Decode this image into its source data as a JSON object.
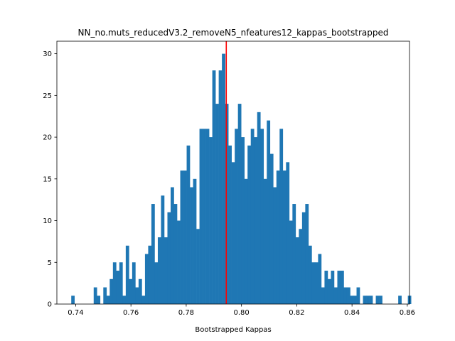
{
  "chart_data": {
    "type": "bar",
    "title": "NN_no.muts_reducedV3.2_removeN5_nfeatures12_kappas_bootstrapped",
    "xlabel": "Bootstrapped Kappas",
    "ylabel": "",
    "xlim": [
      0.7332,
      0.8608
    ],
    "ylim": [
      0,
      31.5
    ],
    "xticks": [
      0.74,
      0.76,
      0.78,
      0.8,
      0.82,
      0.84,
      0.86
    ],
    "xtick_labels": [
      "0.74",
      "0.76",
      "0.78",
      "0.80",
      "0.82",
      "0.84",
      "0.86"
    ],
    "yticks": [
      0,
      5,
      10,
      15,
      20,
      25,
      30
    ],
    "ytick_labels": [
      "0",
      "5",
      "10",
      "15",
      "20",
      "25",
      "30"
    ],
    "bin_start": 0.7384,
    "bin_width": 0.00116,
    "counts": [
      1,
      0,
      0,
      0,
      0,
      0,
      0,
      2,
      1,
      0,
      2,
      1,
      3,
      5,
      4,
      5,
      1,
      7,
      3,
      5,
      2,
      3,
      1,
      6,
      7,
      12,
      5,
      8,
      13,
      8,
      11,
      14,
      12,
      10,
      16,
      16,
      19,
      14,
      15,
      9,
      21,
      21,
      21,
      20,
      28,
      24,
      28,
      30,
      24,
      19,
      17,
      21,
      24,
      20,
      15,
      19,
      21,
      20,
      23,
      21,
      15,
      22,
      18,
      14,
      16,
      21,
      16,
      17,
      10,
      12,
      8,
      9,
      11,
      12,
      7,
      5,
      5,
      6,
      2,
      4,
      3,
      4,
      2,
      4,
      4,
      2,
      2,
      1,
      1,
      2,
      0,
      1,
      1,
      1,
      0,
      1,
      1,
      0,
      0,
      0,
      0,
      0,
      1,
      0,
      0,
      1
    ],
    "bar_color": "#1f77b4",
    "reference_line": {
      "x": 0.7945,
      "color": "#ff0000"
    },
    "grid": false,
    "legend": "none"
  }
}
